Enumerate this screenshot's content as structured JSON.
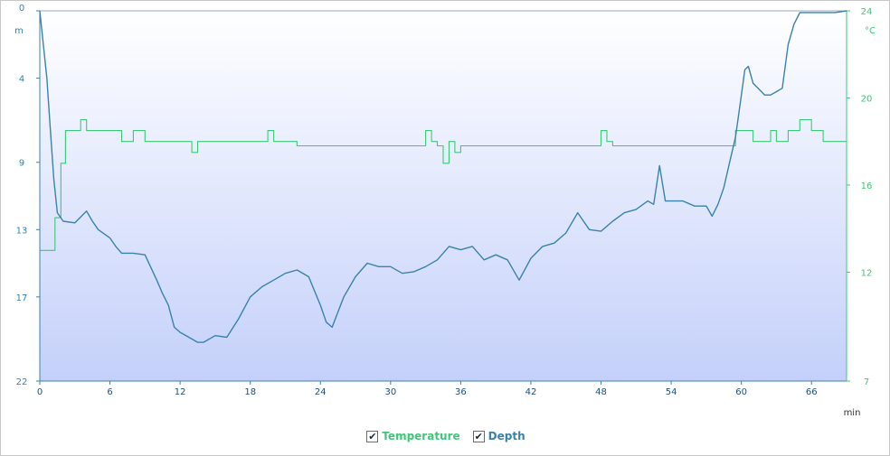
{
  "chart_data": {
    "type": "line",
    "x_unit": "min",
    "x_range": [
      0,
      69
    ],
    "x_ticks": [
      0,
      6,
      12,
      18,
      24,
      30,
      36,
      42,
      48,
      54,
      60,
      66
    ],
    "left_axis": {
      "unit": "m",
      "range": [
        0,
        22
      ],
      "ticks": [
        0,
        4,
        9,
        13,
        17,
        22
      ],
      "inverted": true
    },
    "right_axis": {
      "unit": "°C",
      "range": [
        7,
        24
      ],
      "ticks": [
        24,
        20,
        16,
        12,
        7
      ]
    },
    "grid": false,
    "legend_position": "bottom-center",
    "series": [
      {
        "name": "Temperature",
        "axis": "right",
        "color": "#3cc878",
        "x": [
          0,
          1.0,
          1.3,
          1.8,
          2.2,
          2.6,
          3.0,
          3.5,
          4.0,
          5.0,
          6.0,
          7.0,
          8.0,
          9.0,
          10.0,
          11.0,
          12.0,
          12.5,
          13.0,
          13.5,
          14.0,
          15.0,
          16.0,
          17.0,
          18.0,
          19.0,
          19.5,
          20.0,
          22.0,
          24.0,
          26.0,
          28.0,
          30.0,
          32.0,
          33.0,
          33.5,
          34.0,
          34.5,
          35.0,
          35.5,
          36.0,
          37.0,
          40.0,
          44.0,
          47.0,
          48.0,
          48.5,
          49.0,
          50.0,
          53.0,
          56.0,
          59.0,
          59.5,
          60.0,
          61.0,
          62.0,
          62.5,
          63.0,
          64.0,
          65.0,
          66.0,
          67.0,
          68.0,
          69.0
        ],
        "values": [
          13.0,
          13.0,
          14.5,
          17.0,
          18.5,
          18.5,
          18.5,
          19.0,
          18.5,
          18.5,
          18.5,
          18.0,
          18.5,
          18.0,
          18.0,
          18.0,
          18.0,
          18.0,
          17.5,
          18.0,
          18.0,
          18.0,
          18.0,
          18.0,
          18.0,
          18.0,
          18.5,
          18.0,
          17.8,
          17.8,
          17.8,
          17.8,
          17.8,
          17.8,
          18.5,
          18.0,
          17.8,
          17.0,
          18.0,
          17.5,
          17.8,
          17.8,
          17.8,
          17.8,
          17.8,
          18.5,
          18.0,
          17.8,
          17.8,
          17.8,
          17.8,
          17.8,
          18.5,
          18.5,
          18.0,
          18.0,
          18.5,
          18.0,
          18.5,
          19.0,
          18.5,
          18.0,
          18.0,
          18.0
        ]
      },
      {
        "name": "Depth",
        "axis": "left",
        "color": "#3a82aa",
        "x": [
          0,
          0.3,
          0.6,
          0.9,
          1.2,
          1.5,
          2.0,
          3.0,
          4.0,
          4.5,
          5.0,
          6.0,
          6.5,
          7.0,
          8.0,
          9.0,
          10.0,
          10.5,
          11.0,
          11.5,
          12.0,
          13.0,
          13.5,
          14.0,
          15.0,
          16.0,
          17.0,
          18.0,
          19.0,
          20.0,
          21.0,
          22.0,
          23.0,
          24.0,
          24.5,
          25.0,
          26.0,
          27.0,
          28.0,
          29.0,
          30.0,
          31.0,
          32.0,
          33.0,
          34.0,
          35.0,
          36.0,
          37.0,
          38.0,
          39.0,
          40.0,
          41.0,
          42.0,
          43.0,
          44.0,
          45.0,
          46.0,
          47.0,
          48.0,
          49.0,
          50.0,
          51.0,
          52.0,
          52.5,
          53.0,
          53.5,
          54.0,
          55.0,
          56.0,
          57.0,
          57.5,
          58.0,
          58.5,
          59.0,
          59.5,
          60.0,
          60.3,
          60.6,
          61.0,
          62.0,
          62.5,
          63.0,
          63.5,
          64.0,
          64.5,
          65.0,
          66.0,
          67.0,
          68.0,
          69.0
        ],
        "values": [
          0,
          2.0,
          4.0,
          7.0,
          10.0,
          12.0,
          12.5,
          12.6,
          11.9,
          12.5,
          13.0,
          13.5,
          14.0,
          14.4,
          14.4,
          14.5,
          16.0,
          16.8,
          17.5,
          18.8,
          19.1,
          19.5,
          19.7,
          19.7,
          19.3,
          19.4,
          18.3,
          17.0,
          16.4,
          16.0,
          15.6,
          15.4,
          15.8,
          17.5,
          18.5,
          18.8,
          17.0,
          15.8,
          15.0,
          15.2,
          15.2,
          15.6,
          15.5,
          15.2,
          14.8,
          14.0,
          14.2,
          14.0,
          14.8,
          14.5,
          14.8,
          16.0,
          14.7,
          14.0,
          13.8,
          13.2,
          12.0,
          13.0,
          13.1,
          12.5,
          12.0,
          11.8,
          11.3,
          11.5,
          9.2,
          11.3,
          11.3,
          11.3,
          11.6,
          11.6,
          12.2,
          11.5,
          10.5,
          9.0,
          7.5,
          5.0,
          3.5,
          3.3,
          4.3,
          5.0,
          5.0,
          4.8,
          4.6,
          2.0,
          0.8,
          0.1,
          0.1,
          0.1,
          0.1,
          0.0
        ]
      }
    ]
  },
  "legend": {
    "check_mark": "✔",
    "items": [
      {
        "label": "Temperature",
        "color": "#3cc878"
      },
      {
        "label": "Depth",
        "color": "#3a82aa"
      }
    ]
  }
}
